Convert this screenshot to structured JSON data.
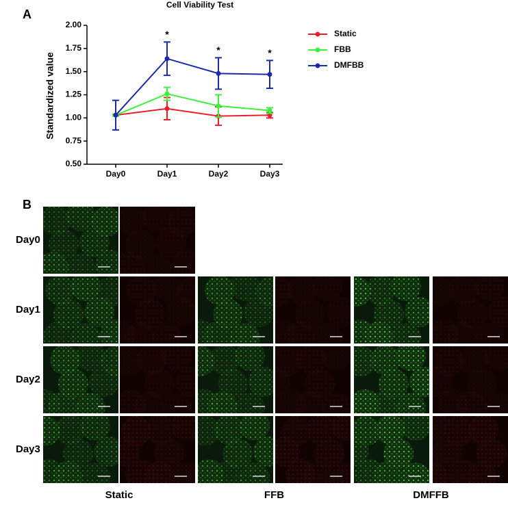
{
  "chart_data": {
    "type": "line",
    "panel_label": "A",
    "title": "Cell Viability Test",
    "ylabel": "Standardized value",
    "categories": [
      "Day0",
      "Day1",
      "Day2",
      "Day3"
    ],
    "series": [
      {
        "name": "Static",
        "color": "#e8202a",
        "values": [
          1.03,
          1.1,
          1.02,
          1.03
        ],
        "errors": [
          0.01,
          0.12,
          0.1,
          0.03
        ]
      },
      {
        "name": "FBB",
        "color": "#3cf03c",
        "values": [
          1.03,
          1.26,
          1.13,
          1.08
        ],
        "errors": [
          0.01,
          0.07,
          0.12,
          0.03
        ]
      },
      {
        "name": "DMFBB",
        "color": "#1a2aa8",
        "values": [
          1.03,
          1.64,
          1.48,
          1.47
        ],
        "errors": [
          0.16,
          0.18,
          0.17,
          0.15
        ]
      }
    ],
    "annotations": [
      {
        "text": "*",
        "x": "Day1"
      },
      {
        "text": "*",
        "x": "Day2"
      },
      {
        "text": "*",
        "x": "Day3"
      }
    ],
    "ylim": [
      0.5,
      2.0
    ],
    "yticks": [
      {
        "value": 0.5,
        "label": "0.50"
      },
      {
        "value": 0.75,
        "label": "0.75"
      },
      {
        "value": 1.0,
        "label": "1.00"
      },
      {
        "value": 1.25,
        "label": "1.25"
      },
      {
        "value": 1.5,
        "label": "1.50"
      },
      {
        "value": 1.75,
        "label": "1.75"
      },
      {
        "value": 2.0,
        "label": "2.00"
      }
    ],
    "legend": "right"
  },
  "panel_b": {
    "label": "B",
    "rows": [
      "Day0",
      "Day1",
      "Day2",
      "Day3"
    ],
    "columns": [
      "Static",
      "FFB",
      "DMFFB"
    ]
  }
}
